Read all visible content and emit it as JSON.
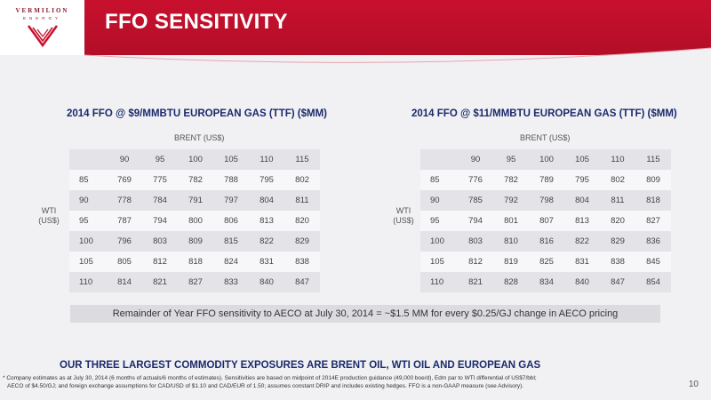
{
  "logo": {
    "name": "VERMILION",
    "sub": "ENERGY"
  },
  "title": "FFO SENSITIVITY",
  "left": {
    "title": "2014 FFO @ $9/MMBTU EUROPEAN GAS (TTF) ($MM)",
    "brent_label": "BRENT (US$)",
    "wti_label_line1": "WTI",
    "wti_label_line2": "(US$)",
    "columns": [
      "90",
      "95",
      "100",
      "105",
      "110",
      "115"
    ],
    "rows": [
      {
        "wti": "85",
        "values": [
          "769",
          "775",
          "782",
          "788",
          "795",
          "802"
        ]
      },
      {
        "wti": "90",
        "values": [
          "778",
          "784",
          "791",
          "797",
          "804",
          "811"
        ]
      },
      {
        "wti": "95",
        "values": [
          "787",
          "794",
          "800",
          "806",
          "813",
          "820"
        ]
      },
      {
        "wti": "100",
        "values": [
          "796",
          "803",
          "809",
          "815",
          "822",
          "829"
        ]
      },
      {
        "wti": "105",
        "values": [
          "805",
          "812",
          "818",
          "824",
          "831",
          "838"
        ]
      },
      {
        "wti": "110",
        "values": [
          "814",
          "821",
          "827",
          "833",
          "840",
          "847"
        ]
      }
    ]
  },
  "right": {
    "title": "2014 FFO @ $11/MMBTU EUROPEAN GAS (TTF) ($MM)",
    "brent_label": "BRENT (US$)",
    "wti_label_line1": "WTI",
    "wti_label_line2": "(US$)",
    "columns": [
      "90",
      "95",
      "100",
      "105",
      "110",
      "115"
    ],
    "rows": [
      {
        "wti": "85",
        "values": [
          "776",
          "782",
          "789",
          "795",
          "802",
          "809"
        ]
      },
      {
        "wti": "90",
        "values": [
          "785",
          "792",
          "798",
          "804",
          "811",
          "818"
        ]
      },
      {
        "wti": "95",
        "values": [
          "794",
          "801",
          "807",
          "813",
          "820",
          "827"
        ]
      },
      {
        "wti": "100",
        "values": [
          "803",
          "810",
          "816",
          "822",
          "829",
          "836"
        ]
      },
      {
        "wti": "105",
        "values": [
          "812",
          "819",
          "825",
          "831",
          "838",
          "845"
        ]
      },
      {
        "wti": "110",
        "values": [
          "821",
          "828",
          "834",
          "840",
          "847",
          "854"
        ]
      }
    ]
  },
  "aeco_note": "Remainder of Year FFO sensitivity to AECO at July 30, 2014 = ~$1.5 MM for every $0.25/GJ change in AECO pricing",
  "exposure_heading": "OUR THREE LARGEST COMMODITY EXPOSURES ARE BRENT OIL, WTI OIL AND EUROPEAN GAS",
  "footnote_line1": "*  Company estimates as at July 30, 2014 (6 months of actuals/6 months of estimates).  Sensitivities are based on midpoint of 2014E production guidance (49,000 boe/d), Edm par to WTI differential of US$7/bbl;",
  "footnote_line2": "AECO of $4.50/GJ; and foreign exchange assumptions for CAD/USD of $1.10 and CAD/EUR of 1.50; assumes constant DRIP and includes existing hedges.  FFO is a non-GAAP measure (see Advisory).",
  "page_number": "10",
  "colors": {
    "brand_red": "#c8102e",
    "heading_navy": "#1a2a6c"
  }
}
